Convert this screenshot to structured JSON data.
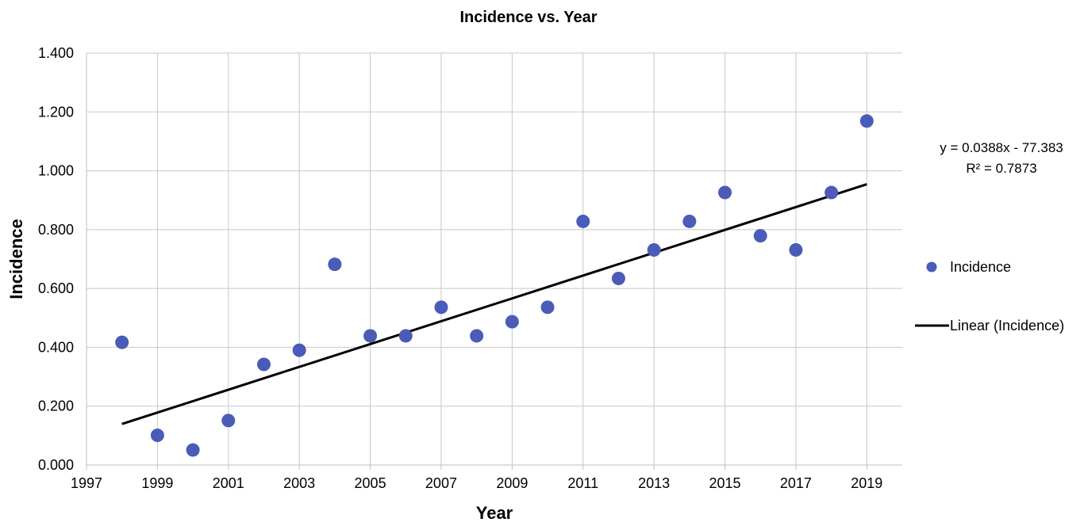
{
  "chart_data": {
    "type": "scatter",
    "title": "Incidence vs. Year",
    "xlabel": "Year",
    "ylabel": "Incidence",
    "xlim": [
      1997,
      2020
    ],
    "ylim": [
      0,
      1.4
    ],
    "x_ticks": [
      "1997",
      "1999",
      "2001",
      "2003",
      "2005",
      "2007",
      "2009",
      "2011",
      "2013",
      "2015",
      "2017",
      "2019"
    ],
    "y_ticks": [
      "0.000",
      "0.200",
      "0.400",
      "0.600",
      "0.800",
      "1.000",
      "1.200",
      "1.400"
    ],
    "grid": true,
    "legend_position": "right",
    "series": [
      {
        "name": "Incidence",
        "color": "#4a5bb8",
        "points": [
          {
            "x": 1998,
            "y": 0.417
          },
          {
            "x": 1999,
            "y": 0.101
          },
          {
            "x": 2000,
            "y": 0.051
          },
          {
            "x": 2001,
            "y": 0.151
          },
          {
            "x": 2002,
            "y": 0.342
          },
          {
            "x": 2003,
            "y": 0.39
          },
          {
            "x": 2004,
            "y": 0.682
          },
          {
            "x": 2005,
            "y": 0.439
          },
          {
            "x": 2006,
            "y": 0.439
          },
          {
            "x": 2007,
            "y": 0.536
          },
          {
            "x": 2008,
            "y": 0.439
          },
          {
            "x": 2009,
            "y": 0.487
          },
          {
            "x": 2010,
            "y": 0.536
          },
          {
            "x": 2011,
            "y": 0.828
          },
          {
            "x": 2012,
            "y": 0.634
          },
          {
            "x": 2013,
            "y": 0.731
          },
          {
            "x": 2014,
            "y": 0.828
          },
          {
            "x": 2015,
            "y": 0.926
          },
          {
            "x": 2016,
            "y": 0.779
          },
          {
            "x": 2017,
            "y": 0.731
          },
          {
            "x": 2018,
            "y": 0.926
          },
          {
            "x": 2019,
            "y": 1.169
          }
        ]
      }
    ],
    "trendline": {
      "name": "Linear (Incidence)",
      "color": "#000000",
      "slope": 0.0388,
      "intercept": -77.383,
      "x_range": [
        1998,
        2019
      ],
      "equation": "y = 0.0388x - 77.383",
      "r_squared": "R² = 0.7873"
    }
  }
}
